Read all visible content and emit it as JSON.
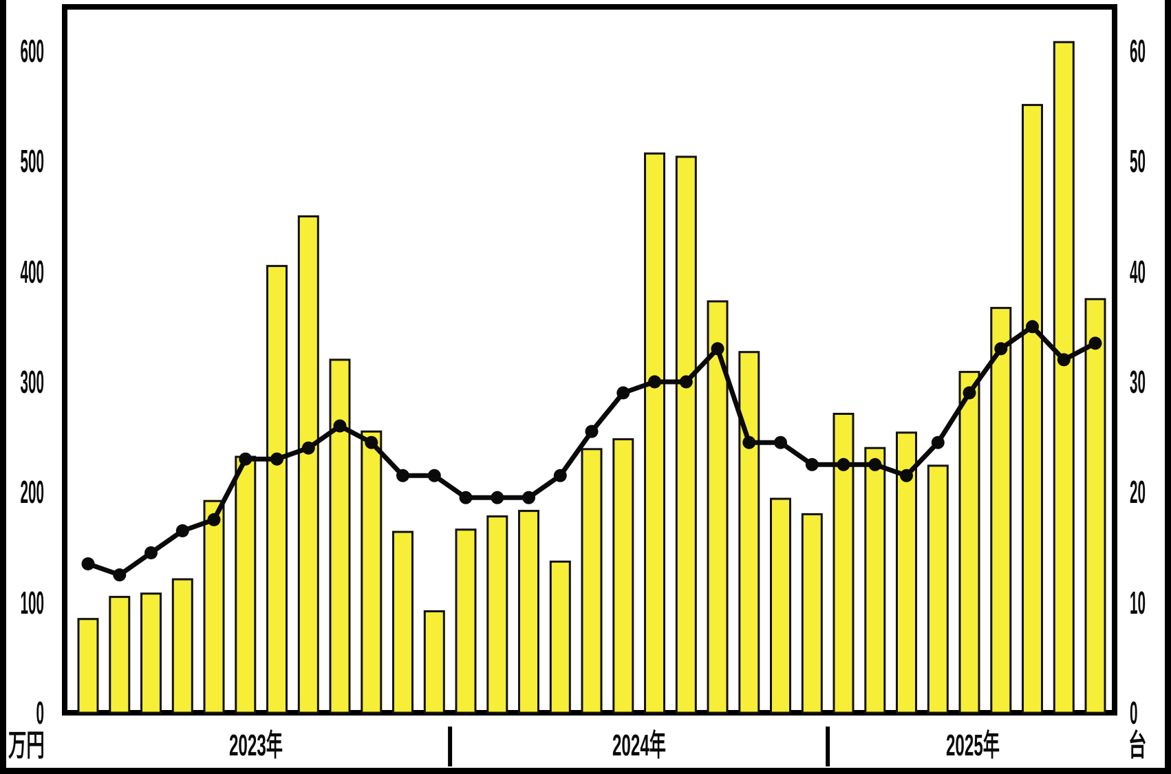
{
  "chart_data": {
    "type": "bar+line",
    "title": "",
    "x_groups": [
      {
        "label": "2023年",
        "count": 12
      },
      {
        "label": "2024年",
        "count": 12
      },
      {
        "label": "2025年",
        "count": 9
      }
    ],
    "series": [
      {
        "name": "bar-series-man-yen",
        "type": "bar",
        "axis": "left",
        "unit": "万円",
        "values": [
          85,
          105,
          108,
          121,
          192,
          232,
          405,
          450,
          320,
          255,
          164,
          92,
          166,
          178,
          183,
          137,
          239,
          248,
          507,
          504,
          373,
          327,
          194,
          180,
          271,
          240,
          254,
          224,
          309,
          367,
          551,
          608,
          375
        ]
      },
      {
        "name": "line-series-dai",
        "type": "line",
        "axis": "right",
        "unit": "台",
        "values": [
          13.5,
          12.5,
          14.5,
          16.5,
          17.5,
          23,
          23,
          24,
          26,
          24.5,
          21.5,
          21.5,
          19.5,
          19.5,
          19.5,
          21.5,
          25.5,
          29,
          30,
          30,
          33,
          24.5,
          24.5,
          22.5,
          22.5,
          22.5,
          21.5,
          24.5,
          29,
          33,
          35,
          32,
          33.5
        ]
      }
    ],
    "left_axis": {
      "unit_label": "万円",
      "min": 0,
      "max": 600,
      "tick_step": 100,
      "tick_labels": [
        "0",
        "100",
        "200",
        "300",
        "400",
        "500",
        "600"
      ]
    },
    "right_axis": {
      "unit_label": "台",
      "min": 0,
      "max": 60,
      "tick_step": 10,
      "tick_labels": [
        "0",
        "10",
        "20",
        "30",
        "40",
        "50",
        "60"
      ]
    },
    "legend": "none",
    "grid": false,
    "colors": {
      "bar_fill": "#F7EE38",
      "bar_stroke": "#121212",
      "line": "#0a0a0a",
      "marker": "#0a0a0a",
      "frame": "#000000",
      "background": "#FFFFFF"
    }
  }
}
